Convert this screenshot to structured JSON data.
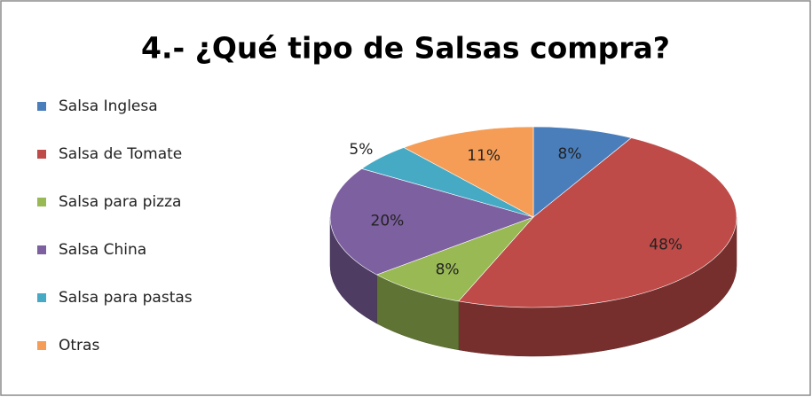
{
  "chart_data": {
    "type": "pie3d",
    "title": "4.- ¿Qué tipo de Salsas compra?",
    "categories": [
      "Salsa Inglesa",
      "Salsa de Tomate",
      "Salsa para pizza",
      "Salsa China",
      "Salsa para pastas",
      "Otras"
    ],
    "values": [
      8,
      48,
      8,
      20,
      5,
      11
    ],
    "value_labels": [
      "8%",
      "48%",
      "8%",
      "20%",
      "5%",
      "11%"
    ],
    "colors": [
      "#4a7ebb",
      "#be4b48",
      "#98b954",
      "#7d60a0",
      "#46aac5",
      "#f59d56"
    ],
    "legend": "left"
  }
}
